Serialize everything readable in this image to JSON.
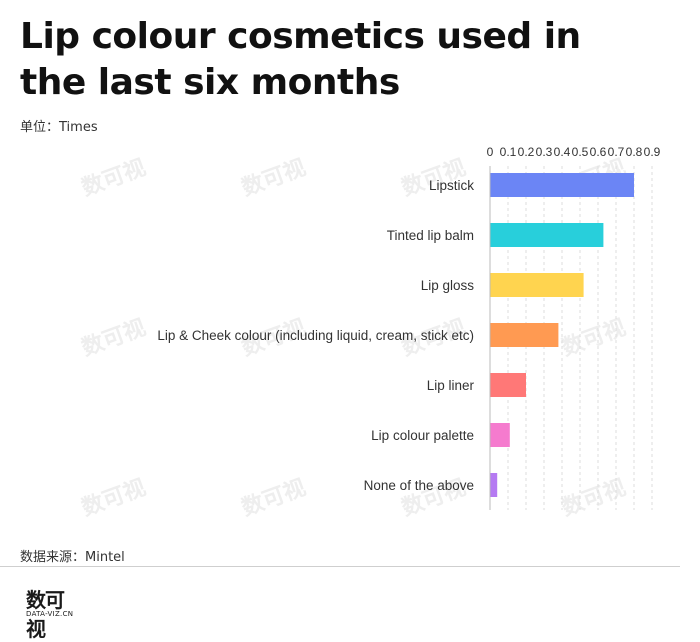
{
  "title": "Lip colour cosmetics used in the last six months",
  "unit_label": "单位：Times",
  "source_label": "数据来源：Mintel",
  "logo": {
    "mark": "数可视",
    "url": "DATA-VIZ.CN"
  },
  "watermark_text": "数可视",
  "colors": {
    "bars": [
      "#6b85f5",
      "#28cfdb",
      "#ffd44f",
      "#ff9a52",
      "#ff7877",
      "#f57bce",
      "#b57af2"
    ],
    "grid": "#dddddd",
    "axis": "#bbbbbb"
  },
  "chart_data": {
    "type": "bar",
    "orientation": "horizontal",
    "categories": [
      "Lipstick",
      "Tinted lip balm",
      "Lip gloss",
      "Lip & Cheek colour (including liquid, cream, stick etc)",
      "Lip liner",
      "Lip colour palette",
      "None of the above"
    ],
    "values": [
      0.8,
      0.63,
      0.52,
      0.38,
      0.2,
      0.11,
      0.04
    ],
    "xlim": [
      0,
      0.9
    ],
    "xticks": [
      "0",
      "0.1",
      "0.2",
      "0.3",
      "0.4",
      "0.5",
      "0.6",
      "0.7",
      "0.8",
      "0.9"
    ],
    "xaxis_position": "top",
    "grid": true,
    "legend": false
  }
}
